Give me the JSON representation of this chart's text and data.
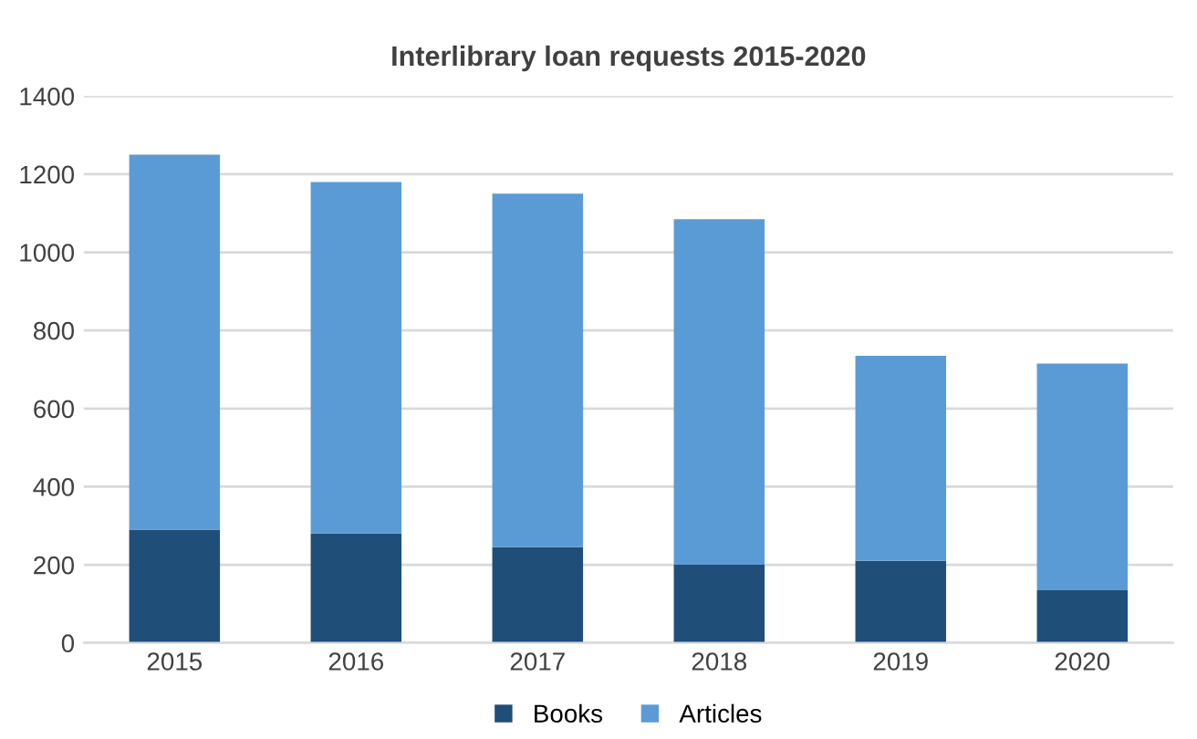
{
  "chart_data": {
    "type": "bar",
    "title": "Interlibrary loan requests 2015-2020",
    "categories": [
      "2015",
      "2016",
      "2017",
      "2018",
      "2019",
      "2020"
    ],
    "stacked": true,
    "series": [
      {
        "name": "Books",
        "color": "#1f4e79",
        "values": [
          290,
          280,
          245,
          200,
          210,
          135
        ]
      },
      {
        "name": "Articles",
        "color": "#5b9bd5",
        "values": [
          960,
          900,
          905,
          885,
          525,
          580
        ]
      }
    ],
    "ylim": [
      0,
      1400
    ],
    "yticks": [
      0,
      200,
      400,
      600,
      800,
      1000,
      1200,
      1400
    ],
    "grid": "y",
    "legend": "bottom"
  }
}
